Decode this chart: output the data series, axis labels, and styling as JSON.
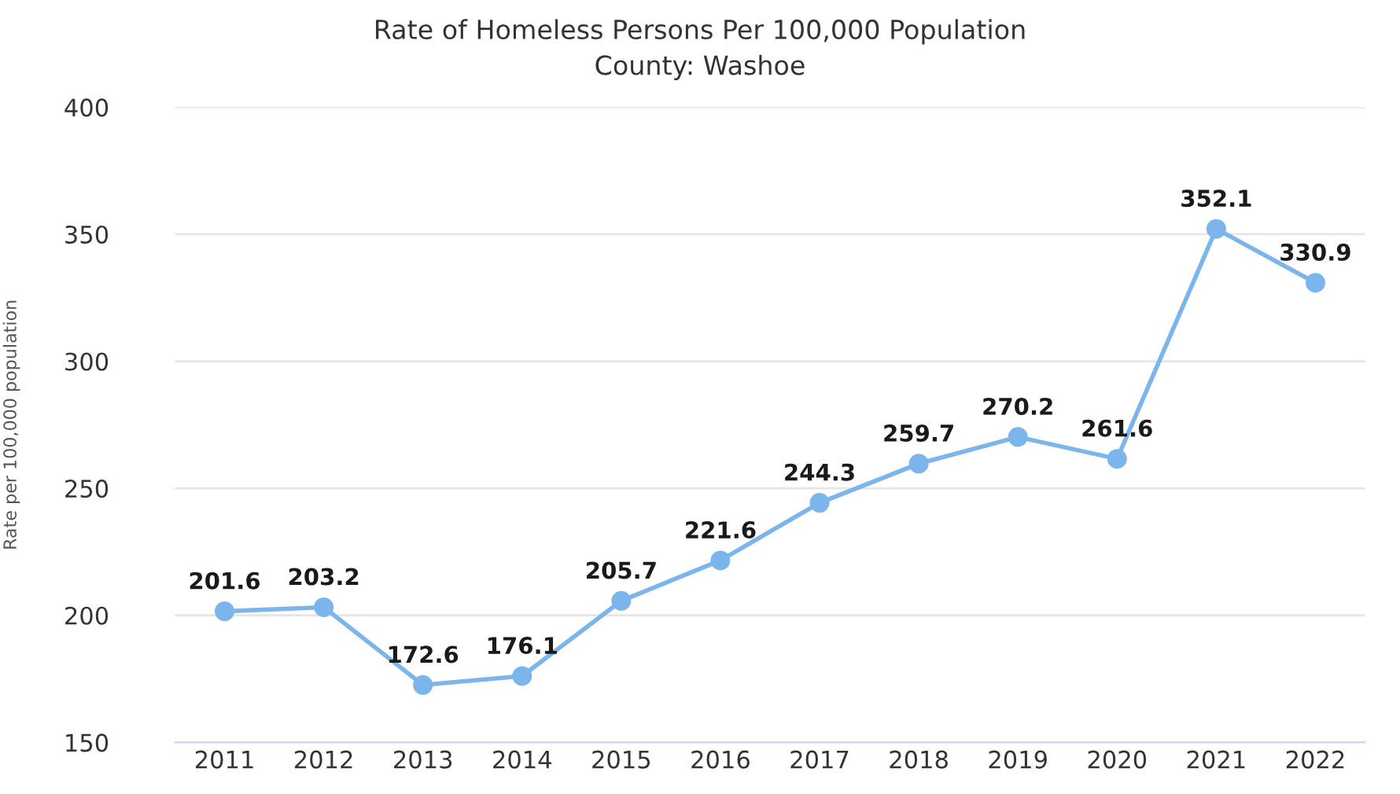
{
  "chart_data": {
    "type": "line",
    "title": "Rate of Homeless Persons Per 100,000 Population",
    "subtitle": "County: Washoe",
    "ylabel": "Rate per 100,000 population",
    "categories": [
      "2011",
      "2012",
      "2013",
      "2014",
      "2015",
      "2016",
      "2017",
      "2018",
      "2019",
      "2020",
      "2021",
      "2022"
    ],
    "series": [
      {
        "color": "#7cb5ec",
        "values": [
          201.6,
          203.2,
          172.6,
          176.1,
          205.7,
          221.6,
          244.3,
          259.7,
          270.2,
          261.6,
          352.1,
          330.9
        ]
      }
    ],
    "ylim": [
      150,
      400
    ],
    "yticks": [
      150,
      200,
      250,
      300,
      350,
      400
    ],
    "grid": "y",
    "marker": "circle",
    "data_labels": true
  }
}
